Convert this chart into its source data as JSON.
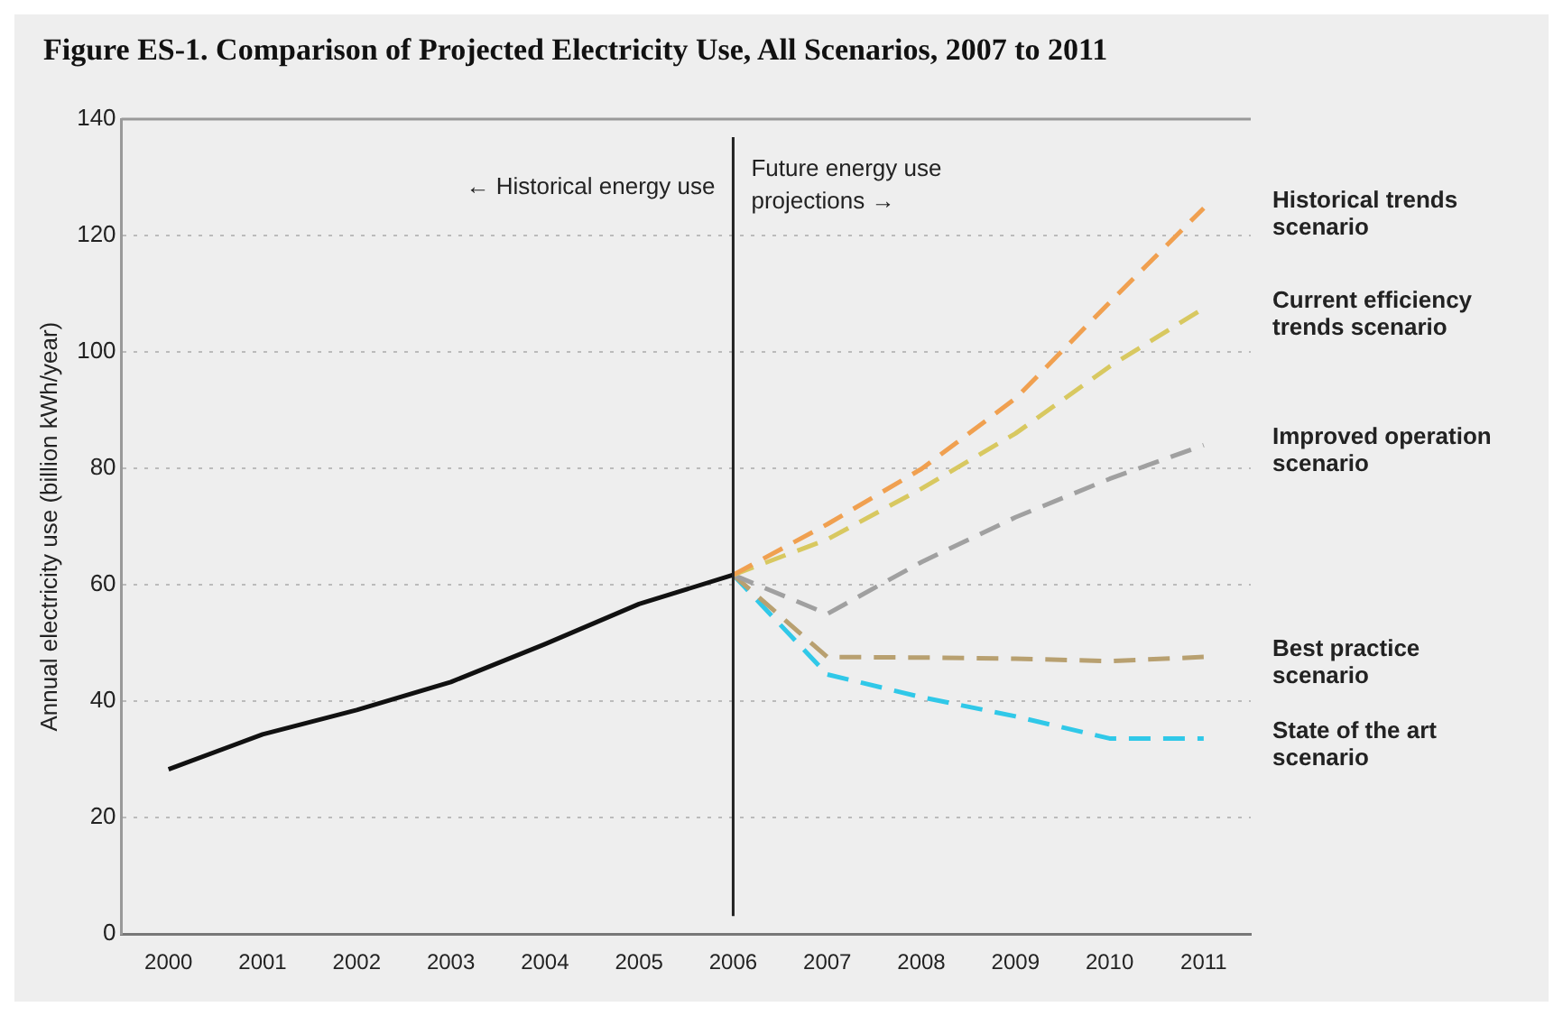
{
  "chart_data": {
    "type": "line",
    "title": "Figure ES-1. Comparison of Projected Electricity Use, All Scenarios, 2007 to 2011",
    "ylabel": "Annual electricity use (billion kWh/year)",
    "categories": [
      "2000",
      "2001",
      "2002",
      "2003",
      "2004",
      "2005",
      "2006",
      "2007",
      "2008",
      "2009",
      "2010",
      "2011"
    ],
    "ylim": [
      0,
      140
    ],
    "yticks": [
      0,
      20,
      40,
      60,
      80,
      100,
      120,
      140
    ],
    "grid": "y",
    "series": [
      {
        "color": "#111111",
        "line_style": "solid",
        "values": [
          28.3,
          34.3,
          38.5,
          43.3,
          49.8,
          56.7,
          61.7,
          null,
          null,
          null,
          null,
          null
        ]
      },
      {
        "name": "Historical trends scenario",
        "color": "#f0a050",
        "line_style": "dashed",
        "values": [
          null,
          null,
          null,
          null,
          null,
          null,
          61.7,
          70.4,
          79.9,
          92,
          108.5,
          124.7
        ]
      },
      {
        "name": "Current efficiency trends scenario",
        "color": "#d8c860",
        "line_style": "dashed",
        "values": [
          null,
          null,
          null,
          null,
          null,
          null,
          61.7,
          67.8,
          76.5,
          86,
          97.5,
          107.5
        ]
      },
      {
        "name": "Improved operation scenario",
        "color": "#a0a0a0",
        "line_style": "dashed",
        "values": [
          null,
          null,
          null,
          null,
          null,
          null,
          61.7,
          55,
          63.9,
          71.6,
          78.2,
          84
        ]
      },
      {
        "name": "Best practice scenario",
        "color": "#b8a070",
        "line_style": "dashed",
        "values": [
          null,
          null,
          null,
          null,
          null,
          null,
          61.7,
          47.6,
          47.5,
          47.3,
          46.9,
          47.6
        ]
      },
      {
        "name": "State of the art scenario",
        "color": "#30c8e8",
        "line_style": "dashed",
        "values": [
          null,
          null,
          null,
          null,
          null,
          null,
          61.7,
          44.6,
          40.7,
          37.4,
          33.6,
          33.6
        ]
      }
    ],
    "ref_lines": [
      {
        "axis": "x",
        "value": "2006",
        "color": "#222222",
        "line_style": "solid"
      }
    ],
    "annotations": [
      "← Historical energy use",
      "Future energy use projections →"
    ],
    "legend": false
  }
}
